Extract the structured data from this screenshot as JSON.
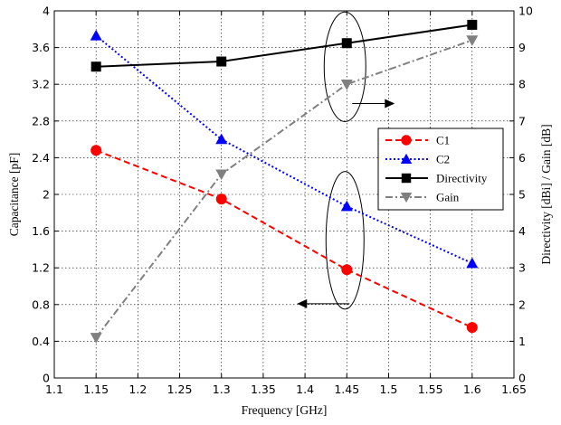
{
  "chart_data": {
    "type": "line",
    "title": "",
    "xlabel": "Frequency [GHz]",
    "ylabel_left": "Capacitance [pF]",
    "ylabel_right": "Directivity [dBi] / Gain [dB]",
    "xlim": [
      1.1,
      1.65
    ],
    "xticks": [
      1.1,
      1.15,
      1.2,
      1.25,
      1.3,
      1.35,
      1.4,
      1.45,
      1.5,
      1.55,
      1.6,
      1.65
    ],
    "xtick_labels": [
      "1.1",
      "1.15",
      "1.2",
      "1.25",
      "1.3",
      "1.35",
      "1.4",
      "1.45",
      "1.5",
      "1.55",
      "1.6",
      "1.65"
    ],
    "ylim_left": [
      0,
      4
    ],
    "yticks_left": [
      0,
      0.4,
      0.8,
      1.2,
      1.6,
      2,
      2.4,
      2.8,
      3.2,
      3.6,
      4
    ],
    "ytick_labels_left": [
      "0",
      "0.4",
      "0.8",
      "1.2",
      "1.6",
      "2",
      "2.4",
      "2.8",
      "3.2",
      "3.6",
      "4"
    ],
    "ylim_right": [
      0,
      10
    ],
    "yticks_right": [
      0,
      1,
      2,
      3,
      4,
      5,
      6,
      7,
      8,
      9,
      10
    ],
    "ytick_labels_right": [
      "0",
      "1",
      "2",
      "3",
      "4",
      "5",
      "6",
      "7",
      "8",
      "9",
      "10"
    ],
    "grid": true,
    "legend_position": "right",
    "x": [
      1.15,
      1.3,
      1.45,
      1.6
    ],
    "series": [
      {
        "name": "C1",
        "axis": "left",
        "values": [
          2.48,
          1.95,
          1.18,
          0.55
        ],
        "color": "#ff0000",
        "dash": "dashed",
        "marker": "circle"
      },
      {
        "name": "C2",
        "axis": "left",
        "values": [
          3.73,
          2.6,
          1.87,
          1.25
        ],
        "color": "#0000ff",
        "dash": "dotted",
        "marker": "triangle-up"
      },
      {
        "name": "Directivity",
        "axis": "right",
        "values": [
          8.48,
          8.62,
          9.12,
          9.62
        ],
        "color": "#000000",
        "dash": "solid",
        "marker": "square"
      },
      {
        "name": "Gain",
        "axis": "right",
        "values": [
          1.1,
          5.55,
          8.0,
          9.2
        ],
        "color": "#808080",
        "dash": "dashdot",
        "marker": "triangle-down"
      }
    ],
    "annotations": [
      {
        "kind": "ellipse-arrow",
        "points_to": "right-axis",
        "at_x": 1.45,
        "around_values_right": [
          7.6,
          9.6
        ]
      },
      {
        "kind": "ellipse-arrow",
        "points_to": "left-axis",
        "at_x": 1.45,
        "around_values_left": [
          0.75,
          2.25
        ]
      }
    ]
  }
}
